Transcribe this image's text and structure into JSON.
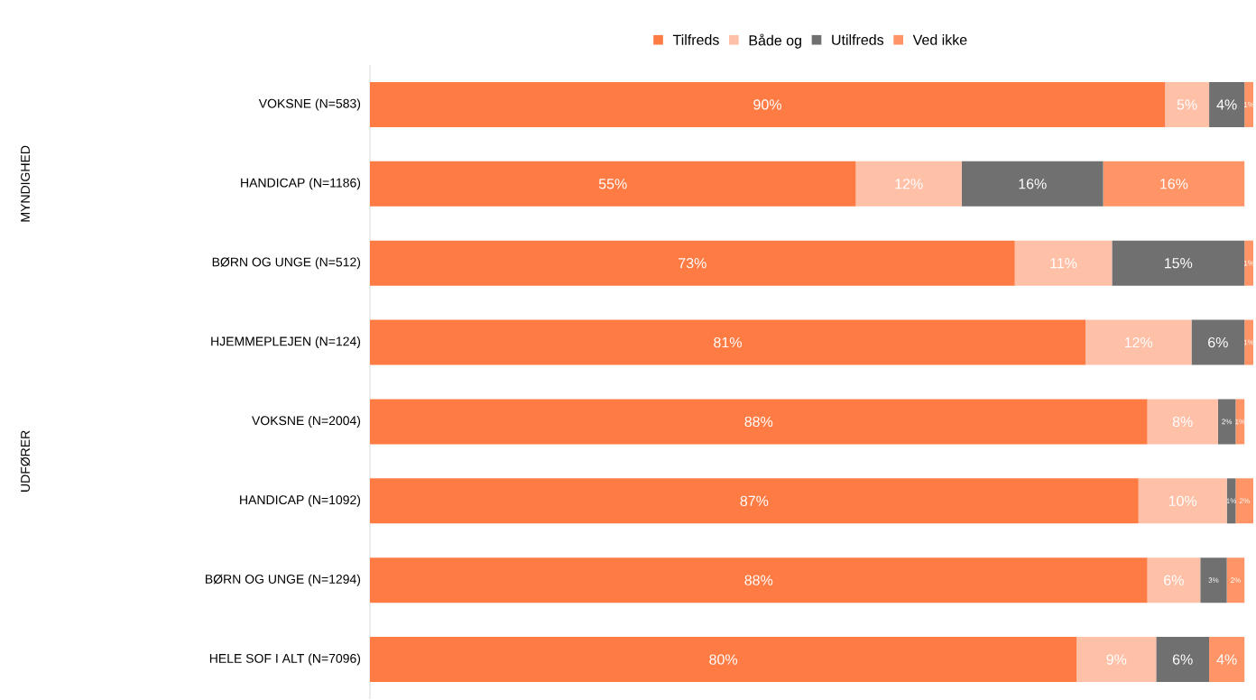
{
  "chart_data": {
    "type": "bar",
    "orientation": "horizontal",
    "stacked": true,
    "categories": [
      "VOKSNE (N=583)",
      "HANDICAP (N=1186)",
      "BØRN OG UNGE (N=512)",
      "HJEMMEPLEJEN (N=124)",
      "VOKSNE (N=2004)",
      "HANDICAP (N=1092)",
      "BØRN OG UNGE (N=1294)",
      "HELE SOF I ALT (N=7096)"
    ],
    "series": [
      {
        "name": "Tilfreds",
        "color": "#ff7b44",
        "values": [
          90,
          55,
          73,
          81,
          88,
          87,
          88,
          80
        ],
        "value_labels": [
          "90%",
          "55%",
          "73%",
          "81%",
          "88%",
          "87%",
          "88%",
          "80%"
        ]
      },
      {
        "name": "Både og",
        "color": "#ffc0a8",
        "values": [
          5,
          12,
          11,
          12,
          8,
          10,
          6,
          9
        ],
        "value_labels": [
          "5%",
          "12%",
          "11%",
          "12%",
          "8%",
          "10%",
          "6%",
          "9%"
        ]
      },
      {
        "name": "Utilfreds",
        "color": "#707070",
        "values": [
          4,
          16,
          15,
          6,
          2,
          1,
          3,
          6
        ],
        "value_labels": [
          "4%",
          "16%",
          "15%",
          "6%",
          "2%",
          "1%",
          "3%",
          "6%"
        ]
      },
      {
        "name": "Ved ikke",
        "color": "#ff9466",
        "values": [
          1,
          16,
          1,
          1,
          1,
          2,
          2,
          4
        ],
        "value_labels": [
          "1%",
          "16%",
          "1%",
          "1%",
          "1%",
          "2%",
          "2%",
          "4%"
        ]
      }
    ],
    "xlim": [
      0,
      100
    ],
    "legend": "top",
    "tick_labels": "y",
    "annotations": [
      "MYNDIGHED",
      "UDFØRER"
    ]
  }
}
